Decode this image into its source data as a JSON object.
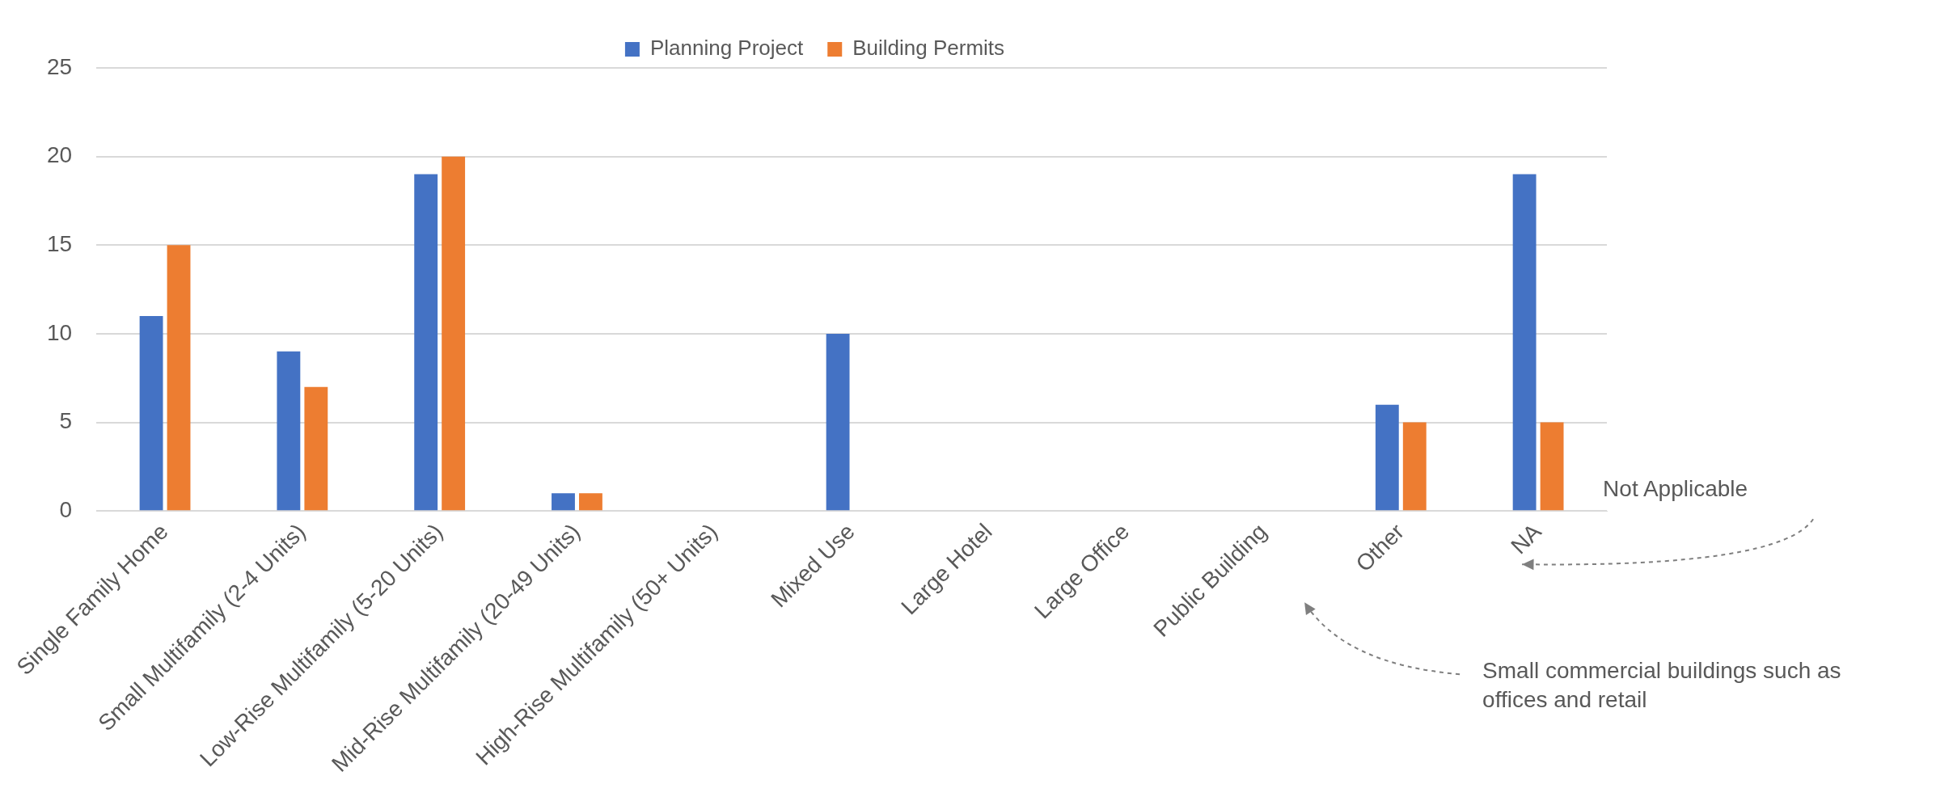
{
  "chart_data": {
    "type": "bar",
    "categories": [
      "Single Family Home",
      "Small Multifamily (2-4 Units)",
      "Low-Rise Multifamily (5-20 Units)",
      "Mid-Rise Multifamily (20-49 Units)",
      "High-Rise Multifamily (50+ Units)",
      "Mixed Use",
      "Large Hotel",
      "Large Office",
      "Public Building",
      "Other",
      "NA"
    ],
    "series": [
      {
        "name": "Planning Project",
        "color": "#4472c4",
        "values": [
          11,
          9,
          19,
          1,
          0,
          10,
          0,
          0,
          0,
          6,
          19
        ]
      },
      {
        "name": "Building Permits",
        "color": "#ed7d31",
        "values": [
          15,
          7,
          20,
          1,
          0,
          0,
          0,
          0,
          0,
          5,
          5
        ]
      }
    ],
    "ylim": [
      0,
      25
    ],
    "yticks": [
      0,
      5,
      10,
      15,
      20,
      25
    ],
    "grid": "y",
    "legend": "top",
    "annotations": [
      "Not Applicable",
      "Small commercial buildings such as offices and retail"
    ]
  }
}
